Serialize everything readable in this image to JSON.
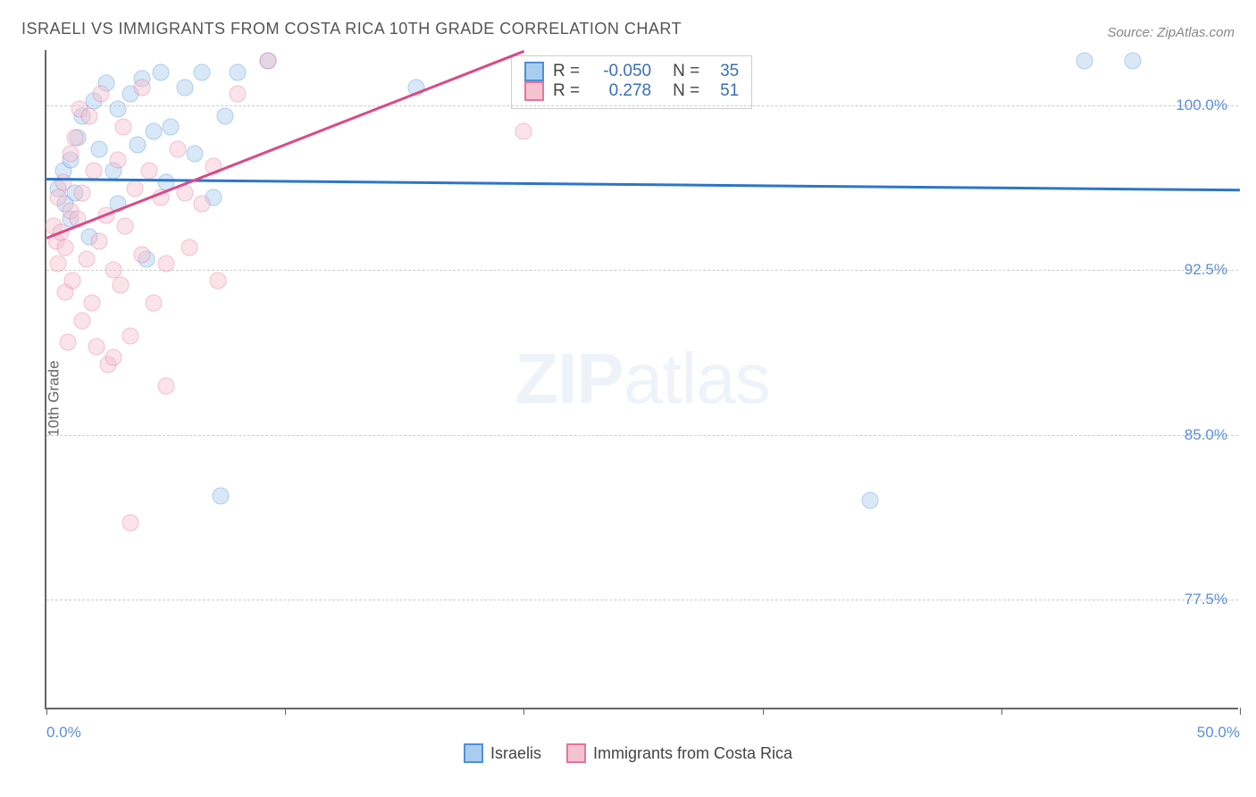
{
  "title": "ISRAELI VS IMMIGRANTS FROM COSTA RICA 10TH GRADE CORRELATION CHART",
  "source": "Source: ZipAtlas.com",
  "ylabel": "10th Grade",
  "watermark_bold": "ZIP",
  "watermark_light": "atlas",
  "chart": {
    "type": "scatter",
    "xlim": [
      0,
      50
    ],
    "ylim": [
      72.5,
      102.5
    ],
    "xticks": [
      0,
      10,
      20,
      30,
      40,
      50
    ],
    "xtick_labels": [
      "0.0%",
      "",
      "",
      "",
      "",
      "50.0%"
    ],
    "yticks": [
      77.5,
      85.0,
      92.5,
      100.0
    ],
    "ytick_labels": [
      "77.5%",
      "85.0%",
      "92.5%",
      "100.0%"
    ],
    "grid_color": "#cccccc",
    "background_color": "#ffffff",
    "axis_color": "#666666",
    "tick_label_color": "#5a8fd6",
    "marker_radius": 9.5,
    "marker_opacity": 0.45,
    "series": [
      {
        "name": "Israelis",
        "color_fill": "#a9cdef",
        "color_stroke": "#4f8fd6",
        "R": -0.05,
        "N": 35,
        "trend": {
          "x1": 0,
          "y1": 96.7,
          "x2": 50,
          "y2": 96.2,
          "color": "#2d76c8",
          "width": 2.5
        },
        "points": [
          [
            0.5,
            96.2
          ],
          [
            0.7,
            97.0
          ],
          [
            0.8,
            95.5
          ],
          [
            1.0,
            94.8
          ],
          [
            1.0,
            97.5
          ],
          [
            1.2,
            96.0
          ],
          [
            1.3,
            98.5
          ],
          [
            1.5,
            99.5
          ],
          [
            1.8,
            94.0
          ],
          [
            2.0,
            100.2
          ],
          [
            2.2,
            98.0
          ],
          [
            2.5,
            101.0
          ],
          [
            2.8,
            97.0
          ],
          [
            3.0,
            95.5
          ],
          [
            3.0,
            99.8
          ],
          [
            3.5,
            100.5
          ],
          [
            3.8,
            98.2
          ],
          [
            4.0,
            101.2
          ],
          [
            4.2,
            93.0
          ],
          [
            4.5,
            98.8
          ],
          [
            4.8,
            101.5
          ],
          [
            5.0,
            96.5
          ],
          [
            5.2,
            99.0
          ],
          [
            5.8,
            100.8
          ],
          [
            6.2,
            97.8
          ],
          [
            6.5,
            101.5
          ],
          [
            7.0,
            95.8
          ],
          [
            7.5,
            99.5
          ],
          [
            8.0,
            101.5
          ],
          [
            9.3,
            102.0
          ],
          [
            15.5,
            100.8
          ],
          [
            34.5,
            82.0
          ],
          [
            43.5,
            102.0
          ],
          [
            45.5,
            102.0
          ],
          [
            7.3,
            82.2
          ]
        ]
      },
      {
        "name": "Immigrants from Costa Rica",
        "color_fill": "#f5c2cf",
        "color_stroke": "#e573a0",
        "R": 0.278,
        "N": 51,
        "trend": {
          "x1": 0,
          "y1": 94.0,
          "x2": 20,
          "y2": 102.5,
          "color": "#d94b87",
          "width": 2.5
        },
        "points": [
          [
            0.3,
            94.5
          ],
          [
            0.4,
            93.8
          ],
          [
            0.5,
            95.8
          ],
          [
            0.5,
            92.8
          ],
          [
            0.6,
            94.2
          ],
          [
            0.7,
            96.5
          ],
          [
            0.8,
            93.5
          ],
          [
            0.8,
            91.5
          ],
          [
            1.0,
            95.2
          ],
          [
            1.0,
            97.8
          ],
          [
            1.1,
            92.0
          ],
          [
            1.2,
            98.5
          ],
          [
            1.3,
            94.8
          ],
          [
            1.4,
            99.8
          ],
          [
            1.5,
            90.2
          ],
          [
            1.5,
            96.0
          ],
          [
            1.7,
            93.0
          ],
          [
            1.8,
            99.5
          ],
          [
            1.9,
            91.0
          ],
          [
            2.0,
            97.0
          ],
          [
            2.1,
            89.0
          ],
          [
            2.2,
            93.8
          ],
          [
            2.3,
            100.5
          ],
          [
            2.5,
            95.0
          ],
          [
            2.6,
            88.2
          ],
          [
            2.8,
            92.5
          ],
          [
            2.8,
            88.5
          ],
          [
            3.0,
            97.5
          ],
          [
            3.1,
            91.8
          ],
          [
            3.2,
            99.0
          ],
          [
            3.3,
            94.5
          ],
          [
            3.5,
            89.5
          ],
          [
            3.7,
            96.2
          ],
          [
            4.0,
            93.2
          ],
          [
            4.0,
            100.8
          ],
          [
            4.3,
            97.0
          ],
          [
            4.5,
            91.0
          ],
          [
            4.8,
            95.8
          ],
          [
            5.0,
            92.8
          ],
          [
            5.0,
            87.2
          ],
          [
            5.5,
            98.0
          ],
          [
            5.8,
            96.0
          ],
          [
            6.0,
            93.5
          ],
          [
            6.5,
            95.5
          ],
          [
            7.0,
            97.2
          ],
          [
            7.2,
            92.0
          ],
          [
            8.0,
            100.5
          ],
          [
            9.3,
            102.0
          ],
          [
            3.5,
            81.0
          ],
          [
            20.0,
            98.8
          ],
          [
            0.9,
            89.2
          ]
        ]
      }
    ]
  },
  "legend_stats": {
    "rows": [
      {
        "swatch_fill": "#a9cdef",
        "swatch_stroke": "#4f8fd6",
        "r_label": "R =",
        "r_val": "-0.050",
        "n_label": "N =",
        "n_val": "35"
      },
      {
        "swatch_fill": "#f5c2cf",
        "swatch_stroke": "#e573a0",
        "r_label": "R =",
        "r_val": " 0.278",
        "n_label": "N =",
        "n_val": "51"
      }
    ],
    "text_color": "#444",
    "value_color": "#3a6fb7"
  },
  "bottom_legend": [
    {
      "swatch_fill": "#a9cdef",
      "swatch_stroke": "#4f8fd6",
      "label": "Israelis"
    },
    {
      "swatch_fill": "#f5c2cf",
      "swatch_stroke": "#e573a0",
      "label": "Immigrants from Costa Rica"
    }
  ]
}
